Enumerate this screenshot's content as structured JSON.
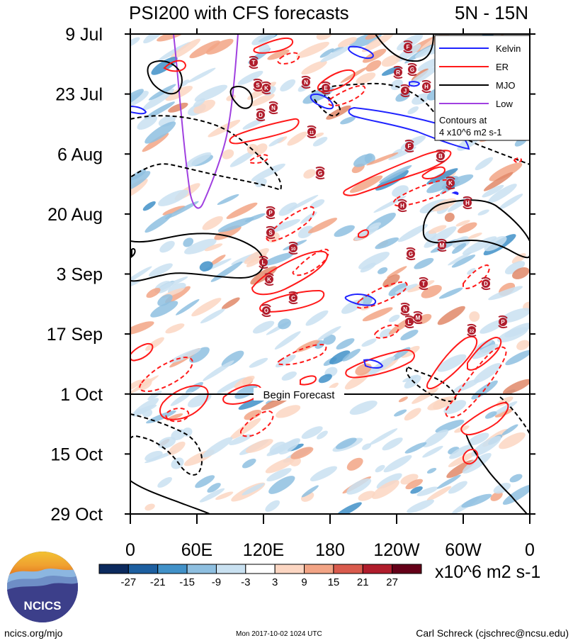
{
  "chart_data": {
    "type": "heatmap",
    "title": "PSI200 with CFS forecasts",
    "region": "5N - 15N",
    "y_tick_labels": [
      "9 Jul",
      "23 Jul",
      "6 Aug",
      "20 Aug",
      "3 Sep",
      "17 Sep",
      "1 Oct",
      "15 Oct",
      "29 Oct"
    ],
    "x_tick_labels": [
      "0",
      "60E",
      "120E",
      "180",
      "120W",
      "60W",
      "0"
    ],
    "xlim": [
      0,
      360
    ],
    "ylim": [
      "9 Jul",
      "29 Oct"
    ],
    "forecast_marker": {
      "date": "1 Oct",
      "label": "Begin Forecast"
    },
    "legend": {
      "position": "top-right",
      "entries": [
        {
          "name": "Kelvin",
          "color": "#1f23ff"
        },
        {
          "name": "ER",
          "color": "#ff1a1a"
        },
        {
          "name": "MJO",
          "color": "#000000"
        },
        {
          "name": "Low",
          "color": "#a040e0"
        }
      ],
      "note_line1": "Contours at",
      "note_line2": "4 x10^6 m2 s-1"
    },
    "colorbar": {
      "labels": [
        "-27",
        "-21",
        "-15",
        "-9",
        "-3",
        "3",
        "9",
        "15",
        "21",
        "27"
      ],
      "colors": [
        "#0c2a5e",
        "#1d5fa0",
        "#4191c8",
        "#8ebfe0",
        "#c9e1f1",
        "#ffffff",
        "#fcd6c2",
        "#f2a485",
        "#d95b4d",
        "#b01d2c",
        "#650018"
      ],
      "units": "x10^6 m2 s-1"
    },
    "storm_markers": [
      "F",
      "T",
      "R",
      "G",
      "S",
      "K",
      "N",
      "E",
      "J",
      "H",
      "N",
      "D",
      "11",
      "F",
      "B",
      "G",
      "K",
      "H",
      "H",
      "P",
      "S",
      "10",
      "M",
      "L",
      "G",
      "K",
      "T",
      "D",
      "C",
      "O",
      "N",
      "M",
      "L",
      "22",
      "P"
    ]
  },
  "footer": {
    "logo_text": "NCICS",
    "url": "ncics.org/mjo",
    "timestamp": "Mon 2017-10-02 1024 UTC",
    "author": "Carl Schreck (cjschrec@ncsu.edu)"
  }
}
